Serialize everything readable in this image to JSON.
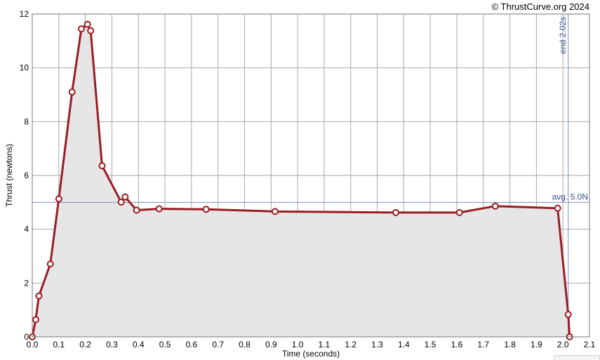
{
  "copyright": "© ThrustCurve.org 2024",
  "chart_data": {
    "type": "area",
    "title": "",
    "xlabel": "Time (seconds)",
    "ylabel": "Thrust (newtons)",
    "xlim": [
      0,
      2.1
    ],
    "ylim": [
      0,
      12
    ],
    "x_ticks": [
      0.0,
      0.1,
      0.2,
      0.3,
      0.4,
      0.5,
      0.6,
      0.7,
      0.8,
      0.9,
      1.0,
      1.1,
      1.2,
      1.3,
      1.4,
      1.5,
      1.6,
      1.7,
      1.8,
      1.9,
      2.0,
      2.1
    ],
    "x_tick_labels": [
      "0.0",
      "0.1",
      "0.2",
      "0.3",
      "0.4",
      "0.5",
      "0.6",
      "0.7",
      "0.8",
      "0.9",
      "1.0",
      "1.1",
      "1.2",
      "1.3",
      "1.4",
      "1.5",
      "1.6",
      "1.7",
      "1.8",
      "1.9",
      "2.0",
      "2.1"
    ],
    "y_ticks": [
      0,
      2,
      4,
      6,
      8,
      10,
      12
    ],
    "y_tick_labels": [
      "0",
      "2",
      "4",
      "6",
      "8",
      "10",
      "12"
    ],
    "grid": true,
    "series": [
      {
        "color": "#9b1c22",
        "fill": "#e6e6e6",
        "x": [
          0.0,
          0.013,
          0.025,
          0.068,
          0.1,
          0.15,
          0.185,
          0.208,
          0.22,
          0.263,
          0.335,
          0.35,
          0.393,
          0.478,
          0.655,
          0.915,
          1.37,
          1.61,
          1.745,
          1.98,
          2.02,
          2.025
        ],
        "y": [
          0.0,
          0.64,
          1.52,
          2.71,
          5.13,
          9.1,
          11.45,
          11.62,
          11.38,
          6.36,
          5.01,
          5.2,
          4.71,
          4.76,
          4.74,
          4.66,
          4.62,
          4.62,
          4.86,
          4.78,
          0.83,
          0.0
        ]
      }
    ],
    "annotations": {
      "average": {
        "value": 5.0,
        "label": "avg. 5.0N",
        "color": "#7b8fc4"
      },
      "burn_end": {
        "value": 2.02,
        "label": "end 2.02s",
        "color": "#7b8fc4"
      }
    }
  }
}
